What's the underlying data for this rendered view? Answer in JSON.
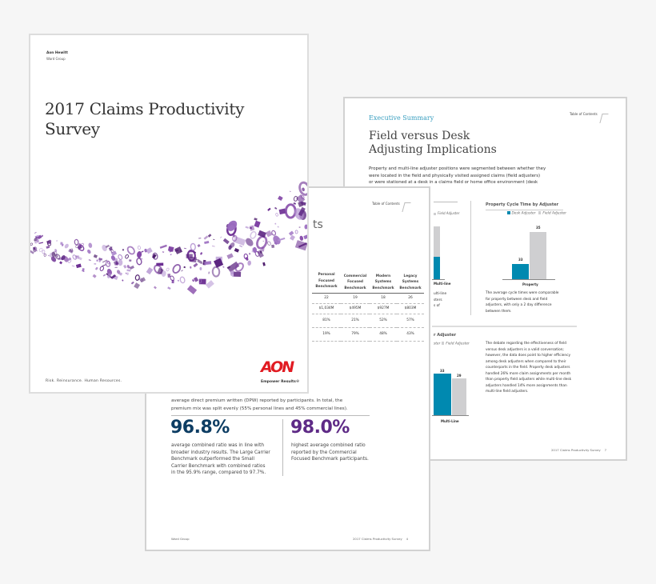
{
  "back_page": {
    "section": "Executive Summary",
    "title_line1": "Field versus Desk",
    "title_line2": "Adjusting Implications",
    "toc": "Table of Contents",
    "intro": [
      "Property and multi-line adjuster positions were segmented between whether they",
      "were located in the field and physically visited assigned claims (field adjusters)",
      "or were stationed at a desk in a claims field or home office environment (desk"
    ],
    "left_chart": {
      "legend_field": "Field Adjuster",
      "category": "Multi-line",
      "text": [
        "ulti-line",
        "sters",
        "s of"
      ]
    },
    "right_chart": {
      "title": "Property Cycle Time by Adjuster",
      "legend_desk": "Desk Adjuster",
      "legend_field": "Field Adjuster",
      "category": "Property",
      "desk": 33,
      "field": 35,
      "text": [
        "The average cycle times were comparable",
        "for property between desk and field",
        "adjusters, with only a 2 day difference",
        "between them."
      ]
    },
    "bottom_chart": {
      "title": "r Adjuster",
      "legend": "ster",
      "legend_field": "Field Adjuster",
      "category": "Multi-Line",
      "desk": 33,
      "field": 29
    },
    "bottom_text": [
      "The debate regarding the effectiveness of field",
      "versus desk adjusters is a valid conversation;",
      "however, the data does point to higher efficiency",
      "among desk adjusters when compared to their",
      "counterparts in the field. Property desk adjusters",
      "handled 26% more claim assignments per month",
      "than property field adjusters while multi-line desk",
      "adjusters handled 14% more assignments than",
      "multi-line field adjusters."
    ],
    "footer": "2017 Claims Productivity Survey",
    "page_number": "7",
    "colors": {
      "teal": "#0089b0",
      "gray": "#cfcfd1",
      "section": "#3a9fc0"
    }
  },
  "middle_page": {
    "toc": "Table of Contents",
    "title_fragment": "ts",
    "table": {
      "headers": [
        [
          "Personal",
          "Focused",
          "Benchmark"
        ],
        [
          "Commercial",
          "Focused",
          "Benchmark"
        ],
        [
          "Modern",
          "Systems",
          "Benchmark"
        ],
        [
          "Legacy",
          "Systems",
          "Benchmark"
        ]
      ],
      "rows": [
        [
          "22",
          "19",
          "18",
          "26"
        ],
        [
          "$1,034M",
          "$495M",
          "$927M",
          "$803M"
        ],
        [
          "81%",
          "21%",
          "52%",
          "57%"
        ],
        [
          "19%",
          "79%",
          "48%",
          "43%"
        ]
      ]
    },
    "para": [
      "average direct premium written (DPW) reported by participants. In total, the",
      "premium mix was split evenly (55% personal lines and 45% commercial lines)."
    ],
    "stat1": {
      "value": "96.8%",
      "text": [
        "average combined ratio was in line with",
        "broader industry results. The Large Carrier",
        "Benchmark outperformed the Small",
        "Carrier Benchmark with combined ratios",
        "in the 95.9% range, compared to 97.7%."
      ]
    },
    "stat2": {
      "value": "98.0%",
      "text": [
        "highest average combined ratio",
        "reported by the Commercial",
        "Focused Benchmark participants."
      ]
    },
    "footer_left": "Ward Group",
    "footer_right": "2017 Claims Productivity Survey",
    "page_number": "4",
    "colors": {
      "stat1": "#0d3d63",
      "stat2": "#5e2a86"
    }
  },
  "cover": {
    "org": "Aon Hewitt",
    "sub": "Ward Group",
    "title_line1": "2017 Claims Productivity",
    "title_line2": "Survey",
    "tagline": "Risk. Reinsurance. Human Resources.",
    "logo": "AON",
    "logo_tagline": "Empower Results®",
    "colors": {
      "logo": "#e11b22",
      "swirl": "#6a2c91"
    }
  }
}
